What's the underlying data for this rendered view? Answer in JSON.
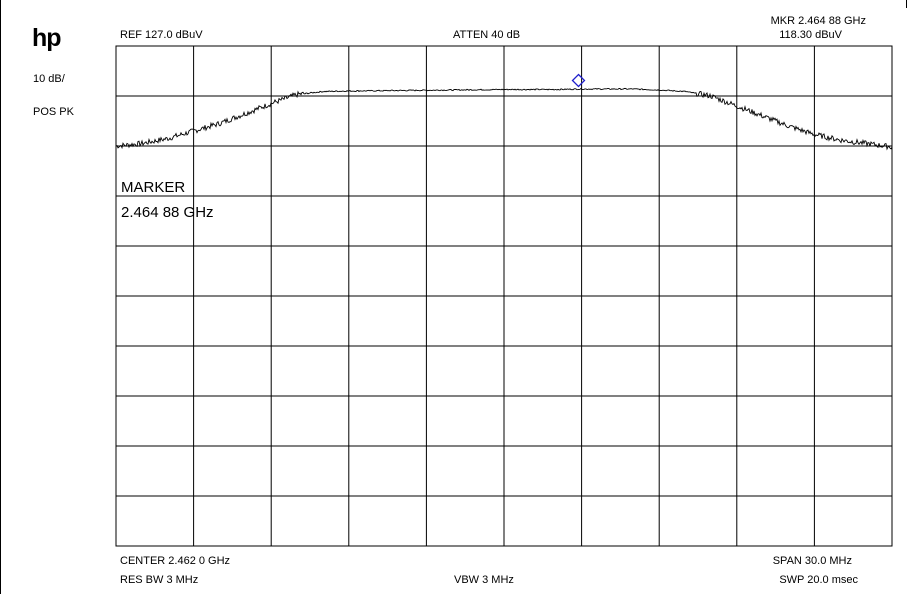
{
  "header": {
    "logo": "hp",
    "scale": "10 dB/",
    "detector": "POS PK",
    "ref_level": "REF  127.0 dBuV",
    "attenuation": "ATTEN 40 dB",
    "marker_freq": "MKR 2.464 88 GHz",
    "marker_ampl": "118.30 dBuV"
  },
  "footer": {
    "center": "CENTER 2.462 0 GHz",
    "span": "SPAN 30.0 MHz",
    "rbw": "RES BW 3 MHz",
    "vbw": "VBW 3 MHz",
    "sweep": "SWP 20.0 msec"
  },
  "chart_data": {
    "type": "line",
    "title": "",
    "xlabel": "",
    "ylabel": "",
    "xlim": [
      2447.0,
      2477.0
    ],
    "ylim": [
      27.0,
      127.0
    ],
    "grid": true,
    "divisions": {
      "x": 10,
      "y": 10
    },
    "series": [
      {
        "x": [
          2447.0,
          2448.0,
          2449.0,
          2450.0,
          2451.0,
          2452.0,
          2453.0,
          2454.0,
          2455.0,
          2456.0,
          2458.0,
          2460.0,
          2462.0,
          2464.0,
          2465.0,
          2466.0,
          2467.0,
          2468.0,
          2469.0,
          2470.0,
          2471.0,
          2472.0,
          2473.0,
          2474.0,
          2475.0,
          2476.0,
          2477.0
        ],
        "y": [
          107.0,
          107.5,
          108.5,
          110.0,
          111.5,
          113.5,
          115.5,
          117.3,
          117.9,
          118.0,
          118.1,
          118.2,
          118.3,
          118.3,
          118.4,
          118.4,
          118.4,
          118.2,
          117.9,
          117.0,
          115.0,
          113.0,
          111.0,
          109.3,
          108.2,
          107.5,
          106.8
        ],
        "color": "#000000"
      }
    ],
    "marker": {
      "x": 2464.88,
      "y": 118.3,
      "color": "#2020cc"
    },
    "annotation": {
      "label": "MARKER",
      "value": "2.464 88 GHz"
    }
  }
}
